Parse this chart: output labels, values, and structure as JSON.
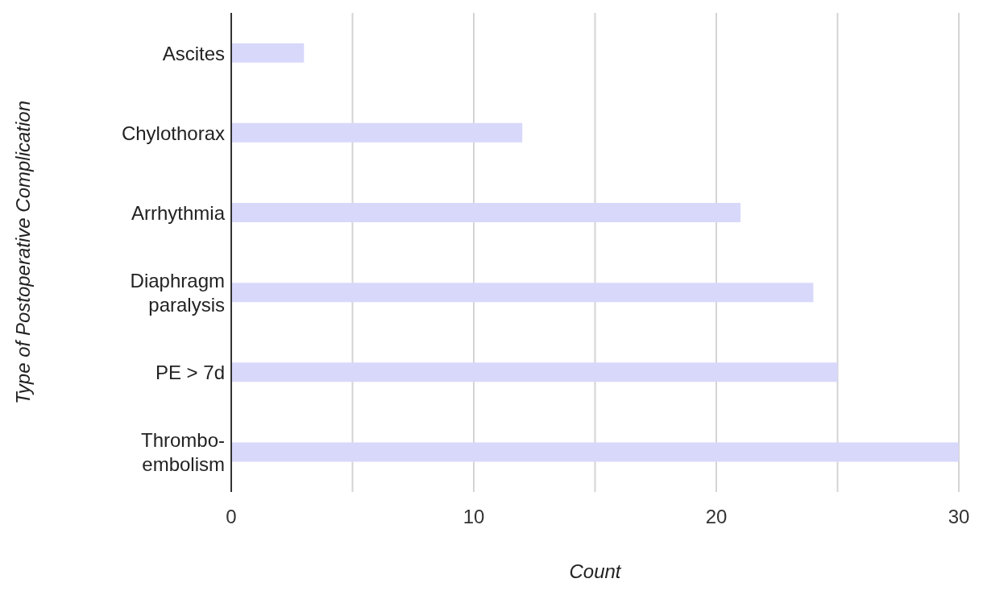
{
  "chart_data": {
    "type": "bar",
    "orientation": "horizontal",
    "xlabel": "Count",
    "ylabel": "Type of Postoperative Complication",
    "categories": [
      "Ascites",
      "Chylothorax",
      "Arrhythmia",
      "Diaphragm paralysis",
      "PE > 7d",
      "Thrombo-embolism"
    ],
    "values": [
      3,
      12,
      21,
      24,
      25,
      30
    ],
    "color": "#d8d8fb",
    "xlim": [
      0,
      30
    ],
    "xticks": [
      0,
      {
        "value": 5,
        "label": null
      },
      10,
      {
        "value": 15,
        "label": null
      },
      20,
      {
        "value": 25,
        "label": null
      },
      30
    ],
    "grid": "x"
  }
}
